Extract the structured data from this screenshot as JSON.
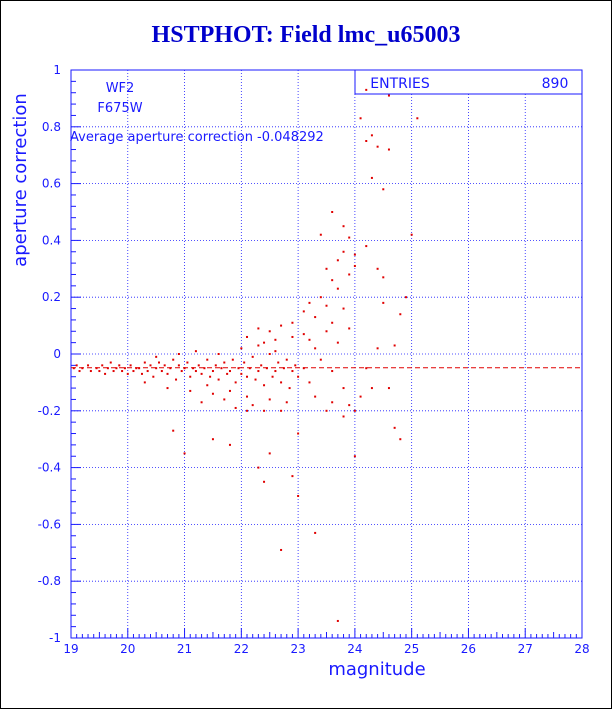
{
  "title": "HSTPHOT: Field lmc_u65003",
  "colors": {
    "axis": "#1a1aff",
    "points": "#e00000",
    "title": "#0000cc"
  },
  "chart_data": {
    "type": "scatter",
    "title": "HSTPHOT: Field lmc_u65003",
    "xlabel": "magnitude",
    "ylabel": "aperture correction",
    "xlim": [
      19,
      28
    ],
    "ylim": [
      -1,
      1
    ],
    "xticks": [
      "19",
      "20",
      "21",
      "22",
      "23",
      "24",
      "25",
      "26",
      "27",
      "28"
    ],
    "yticks": [
      "-1",
      "-0.8",
      "-0.6",
      "-0.4",
      "-0.2",
      "0",
      "0.2",
      "0.4",
      "0.6",
      "0.8",
      "1"
    ],
    "grid": true,
    "annotations": {
      "camera": "WF2",
      "filter": "F675W",
      "average_text": "Average aperture correction -0.048292"
    },
    "stats_box": {
      "label": "ENTRIES",
      "value": "890"
    },
    "reference_line": {
      "y": -0.048292,
      "style": "dashed"
    },
    "series": [
      {
        "points": [
          [
            19.05,
            -0.05
          ],
          [
            19.1,
            -0.04
          ],
          [
            19.15,
            -0.06
          ],
          [
            19.2,
            -0.05
          ],
          [
            19.3,
            -0.04
          ],
          [
            19.35,
            -0.06
          ],
          [
            19.45,
            -0.05
          ],
          [
            19.5,
            -0.06
          ],
          [
            19.55,
            -0.04
          ],
          [
            19.6,
            -0.07
          ],
          [
            19.65,
            -0.05
          ],
          [
            19.7,
            -0.03
          ],
          [
            19.75,
            -0.06
          ],
          [
            19.8,
            -0.05
          ],
          [
            19.85,
            -0.04
          ],
          [
            19.9,
            -0.06
          ],
          [
            19.95,
            -0.05
          ],
          [
            20.0,
            -0.07
          ],
          [
            20.05,
            -0.04
          ],
          [
            20.1,
            -0.06
          ],
          [
            20.15,
            -0.05
          ],
          [
            20.2,
            -0.05
          ],
          [
            20.25,
            -0.07
          ],
          [
            20.3,
            -0.03
          ],
          [
            20.35,
            -0.06
          ],
          [
            20.4,
            -0.04
          ],
          [
            20.45,
            -0.08
          ],
          [
            20.5,
            -0.05
          ],
          [
            20.55,
            -0.03
          ],
          [
            20.6,
            -0.06
          ],
          [
            20.65,
            -0.04
          ],
          [
            20.7,
            -0.07
          ],
          [
            20.75,
            -0.05
          ],
          [
            20.8,
            -0.02
          ],
          [
            20.85,
            -0.09
          ],
          [
            20.9,
            -0.04
          ],
          [
            20.95,
            -0.06
          ],
          [
            21.0,
            -0.05
          ],
          [
            21.05,
            -0.03
          ],
          [
            21.1,
            -0.08
          ],
          [
            21.15,
            -0.05
          ],
          [
            21.2,
            -0.06
          ],
          [
            21.25,
            -0.04
          ],
          [
            21.3,
            -0.07
          ],
          [
            21.35,
            -0.05
          ],
          [
            21.4,
            -0.02
          ],
          [
            21.45,
            -0.08
          ],
          [
            21.5,
            -0.06
          ],
          [
            21.55,
            -0.04
          ],
          [
            21.6,
            -0.09
          ],
          [
            21.65,
            -0.05
          ],
          [
            21.7,
            -0.03
          ],
          [
            21.75,
            -0.07
          ],
          [
            21.8,
            -0.06
          ],
          [
            21.85,
            -0.02
          ],
          [
            21.9,
            -0.1
          ],
          [
            21.95,
            -0.05
          ],
          [
            22.0,
            -0.07
          ],
          [
            22.05,
            -0.03
          ],
          [
            22.1,
            -0.08
          ],
          [
            22.15,
            -0.05
          ],
          [
            22.2,
            -0.01
          ],
          [
            22.25,
            -0.09
          ],
          [
            22.3,
            -0.06
          ],
          [
            22.35,
            -0.04
          ],
          [
            22.4,
            -0.11
          ],
          [
            22.45,
            -0.05
          ],
          [
            22.5,
            0.0
          ],
          [
            22.55,
            -0.08
          ],
          [
            22.6,
            -0.06
          ],
          [
            22.65,
            -0.03
          ],
          [
            22.7,
            -0.1
          ],
          [
            22.75,
            -0.05
          ],
          [
            22.8,
            -0.02
          ],
          [
            22.85,
            -0.12
          ],
          [
            22.9,
            -0.06
          ],
          [
            22.95,
            -0.04
          ],
          [
            23.0,
            -0.08
          ],
          [
            23.1,
            -0.05
          ],
          [
            23.2,
            -0.1
          ],
          [
            20.3,
            -0.1
          ],
          [
            20.5,
            -0.01
          ],
          [
            20.7,
            -0.12
          ],
          [
            20.9,
            0.0
          ],
          [
            21.1,
            -0.13
          ],
          [
            21.2,
            0.01
          ],
          [
            21.4,
            -0.11
          ],
          [
            21.6,
            0.0
          ],
          [
            21.8,
            -0.13
          ],
          [
            22.0,
            0.02
          ],
          [
            22.1,
            -0.15
          ],
          [
            22.3,
            0.03
          ],
          [
            22.5,
            -0.16
          ],
          [
            22.6,
            0.05
          ],
          [
            22.8,
            -0.17
          ],
          [
            22.9,
            0.06
          ],
          [
            21.3,
            -0.17
          ],
          [
            21.5,
            -0.14
          ],
          [
            21.7,
            -0.16
          ],
          [
            21.9,
            -0.19
          ],
          [
            22.1,
            -0.2
          ],
          [
            22.2,
            -0.18
          ],
          [
            22.4,
            -0.2
          ],
          [
            22.7,
            -0.2
          ],
          [
            22.1,
            0.06
          ],
          [
            22.3,
            0.09
          ],
          [
            22.5,
            0.08
          ],
          [
            22.7,
            0.1
          ],
          [
            22.9,
            0.11
          ],
          [
            23.1,
            0.07
          ],
          [
            22.4,
            0.04
          ],
          [
            22.6,
            0.01
          ],
          [
            23.1,
            0.15
          ],
          [
            23.2,
            0.18
          ],
          [
            23.3,
            0.13
          ],
          [
            23.4,
            0.2
          ],
          [
            23.5,
            0.17
          ],
          [
            23.6,
            0.11
          ],
          [
            23.7,
            0.23
          ],
          [
            23.8,
            0.16
          ],
          [
            23.2,
            0.05
          ],
          [
            23.3,
            0.02
          ],
          [
            23.4,
            -0.02
          ],
          [
            23.5,
            0.08
          ],
          [
            23.6,
            -0.06
          ],
          [
            23.7,
            0.04
          ],
          [
            23.8,
            -0.12
          ],
          [
            23.9,
            0.09
          ],
          [
            23.3,
            -0.15
          ],
          [
            23.5,
            -0.2
          ],
          [
            23.6,
            -0.17
          ],
          [
            23.8,
            -0.22
          ],
          [
            23.9,
            -0.18
          ],
          [
            24.0,
            -0.2
          ],
          [
            24.1,
            -0.15
          ],
          [
            24.3,
            -0.12
          ],
          [
            23.5,
            0.3
          ],
          [
            23.6,
            0.26
          ],
          [
            23.7,
            0.33
          ],
          [
            23.8,
            0.36
          ],
          [
            23.9,
            0.28
          ],
          [
            24.0,
            0.31
          ],
          [
            23.4,
            0.42
          ],
          [
            23.6,
            0.5
          ],
          [
            23.8,
            0.45
          ],
          [
            23.9,
            0.41
          ],
          [
            24.0,
            0.35
          ],
          [
            24.2,
            0.38
          ],
          [
            24.4,
            0.3
          ],
          [
            24.5,
            0.27
          ],
          [
            24.5,
            0.18
          ],
          [
            24.8,
            0.14
          ],
          [
            24.2,
            0.75
          ],
          [
            24.3,
            0.77
          ],
          [
            24.4,
            0.73
          ],
          [
            24.6,
            0.72
          ],
          [
            24.5,
            0.58
          ],
          [
            24.3,
            0.62
          ],
          [
            24.1,
            0.83
          ],
          [
            24.2,
            0.93
          ],
          [
            24.6,
            0.91
          ],
          [
            25.1,
            0.83
          ],
          [
            25.0,
            0.42
          ],
          [
            24.9,
            0.2
          ],
          [
            24.7,
            0.03
          ],
          [
            24.6,
            -0.12
          ],
          [
            24.8,
            -0.3
          ],
          [
            24.7,
            -0.26
          ],
          [
            22.3,
            -0.4
          ],
          [
            22.4,
            -0.45
          ],
          [
            22.9,
            -0.43
          ],
          [
            23.0,
            -0.5
          ],
          [
            23.3,
            -0.63
          ],
          [
            22.7,
            -0.69
          ],
          [
            23.7,
            -0.94
          ],
          [
            24.0,
            -0.36
          ],
          [
            20.8,
            -0.27
          ],
          [
            21.5,
            -0.3
          ],
          [
            21.0,
            -0.35
          ],
          [
            22.5,
            -0.35
          ],
          [
            21.8,
            -0.32
          ],
          [
            23.0,
            -0.28
          ],
          [
            24.2,
            -0.05
          ],
          [
            24.4,
            0.02
          ]
        ]
      }
    ]
  }
}
